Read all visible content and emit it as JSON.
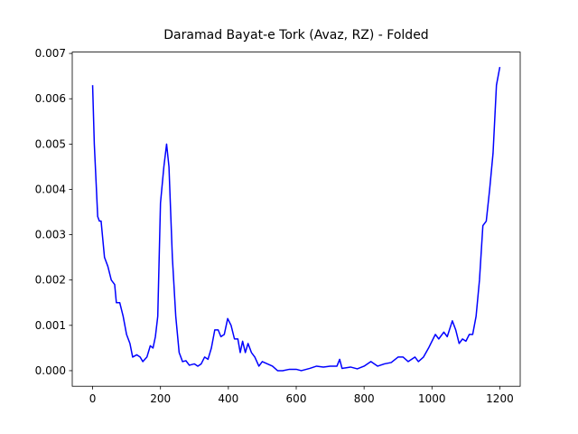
{
  "chart_data": {
    "type": "line",
    "title": "Daramad Bayat-e Tork (Avaz, RZ) - Folded",
    "x": [
      0,
      5,
      15,
      20,
      25,
      35,
      45,
      55,
      65,
      70,
      80,
      90,
      100,
      110,
      118,
      130,
      140,
      148,
      160,
      170,
      178,
      185,
      192,
      200,
      210,
      218,
      225,
      235,
      245,
      255,
      265,
      275,
      285,
      300,
      310,
      320,
      330,
      340,
      350,
      360,
      370,
      378,
      388,
      398,
      408,
      418,
      428,
      435,
      442,
      450,
      458,
      468,
      478,
      490,
      500,
      515,
      530,
      545,
      560,
      580,
      600,
      615,
      640,
      660,
      680,
      700,
      720,
      728,
      735,
      760,
      780,
      800,
      820,
      840,
      860,
      880,
      900,
      915,
      930,
      950,
      960,
      975,
      990,
      1010,
      1020,
      1035,
      1045,
      1060,
      1070,
      1080,
      1090,
      1100,
      1110,
      1120,
      1130,
      1140,
      1150,
      1160,
      1170,
      1180,
      1190,
      1200
    ],
    "series": [
      {
        "color": "#0000ff",
        "values": [
          0.0063,
          0.005,
          0.0034,
          0.0033,
          0.0033,
          0.0025,
          0.0023,
          0.002,
          0.0019,
          0.0015,
          0.0015,
          0.0012,
          0.0008,
          0.0006,
          0.0003,
          0.00035,
          0.0003,
          0.0002,
          0.0003,
          0.00055,
          0.0005,
          0.00075,
          0.0012,
          0.0037,
          0.0045,
          0.005,
          0.0045,
          0.0025,
          0.0012,
          0.0004,
          0.0002,
          0.00022,
          0.00012,
          0.00015,
          0.0001,
          0.00015,
          0.0003,
          0.00025,
          0.0005,
          0.0009,
          0.0009,
          0.00075,
          0.0008,
          0.00115,
          0.001,
          0.0007,
          0.0007,
          0.0004,
          0.00065,
          0.0004,
          0.0006,
          0.0004,
          0.0003,
          0.0001,
          0.0002,
          0.00015,
          0.0001,
          0,
          0,
          3e-05,
          3e-05,
          0,
          5e-05,
          0.0001,
          8e-05,
          0.0001,
          0.0001,
          0.00025,
          5e-05,
          8e-05,
          4e-05,
          0.0001,
          0.0002,
          0.0001,
          0.00015,
          0.00018,
          0.0003,
          0.0003,
          0.0002,
          0.0003,
          0.0002,
          0.0003,
          0.0005,
          0.0008,
          0.0007,
          0.00085,
          0.00075,
          0.0011,
          0.0009,
          0.0006,
          0.0007,
          0.00065,
          0.0008,
          0.0008,
          0.0012,
          0.002,
          0.0032,
          0.0033,
          0.004,
          0.0048,
          0.0063,
          0.0067
        ]
      }
    ],
    "xlim": [
      -60,
      1260
    ],
    "xticks": [
      0,
      200,
      400,
      600,
      800,
      1000,
      1200
    ],
    "ylim": [
      -0.000344,
      0.00703
    ],
    "yticks": [
      {
        "value": 0,
        "label": "0.000"
      },
      {
        "value": 0.001,
        "label": "0.001"
      },
      {
        "value": 0.002,
        "label": "0.002"
      },
      {
        "value": 0.003,
        "label": "0.003"
      },
      {
        "value": 0.004,
        "label": "0.004"
      },
      {
        "value": 0.005,
        "label": "0.005"
      },
      {
        "value": 0.006,
        "label": "0.006"
      },
      {
        "value": 0.007,
        "label": "0.007"
      }
    ],
    "grid": false
  }
}
